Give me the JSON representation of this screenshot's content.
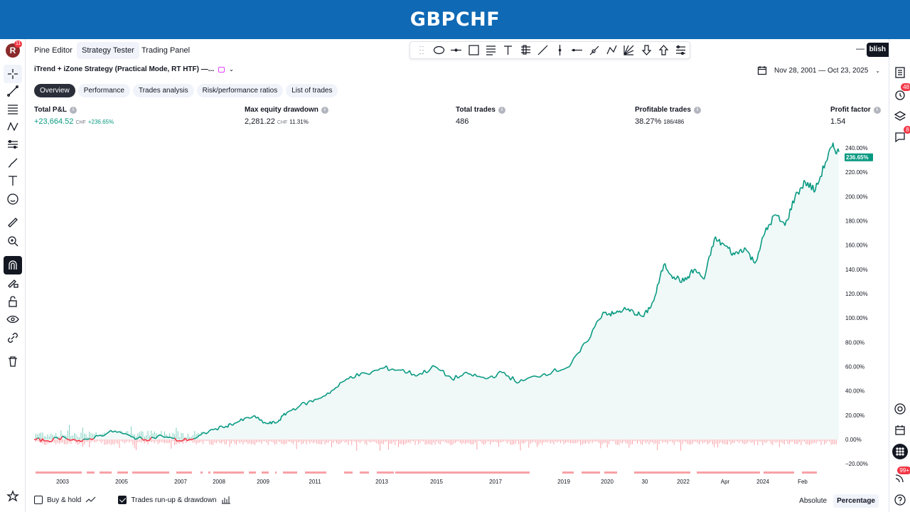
{
  "banner": {
    "title": "GBPCHF"
  },
  "topbar": {
    "avatar_letter": "R",
    "avatar_badge": "11",
    "tabs": [
      "Pine Editor",
      "Strategy Tester",
      "Trading Panel"
    ],
    "active_tab": "Strategy Tester",
    "publish_label": "blish",
    "minimize": "—",
    "restore": "⧉"
  },
  "strategy": {
    "name": "iTrend + iZone Strategy (Practical Mode, RT HTF) —...",
    "date_range": "Nov 28, 2001 — Oct 23, 2025"
  },
  "pills": [
    "Overview",
    "Performance",
    "Trades analysis",
    "Risk/performance ratios",
    "List of trades"
  ],
  "metrics": {
    "total_pl": {
      "label": "Total P&L",
      "value": "+23,664.52",
      "unit": "CHF",
      "sub": "+236.65%"
    },
    "max_dd": {
      "label": "Max equity drawdown",
      "value": "2,281.22",
      "unit": "CHF",
      "sub": "11.31%"
    },
    "total_trades": {
      "label": "Total trades",
      "value": "486"
    },
    "profitable": {
      "label": "Profitable trades",
      "value": "38.27%",
      "sub": "186/486"
    },
    "profit_factor": {
      "label": "Profit factor",
      "value": "1.54"
    }
  },
  "right_badges": {
    "alerts": "48",
    "chat": "8",
    "notifications": "99+"
  },
  "bottom": {
    "buy_hold": "Buy & hold",
    "runup": "Trades run-up & drawdown",
    "absolute": "Absolute",
    "percentage": "Percentage"
  },
  "colors": {
    "equity": "#089981",
    "negative": "#f23645",
    "fill": "#f0f9f8",
    "drawdown_bar": "#f7a1a7"
  },
  "chart_data": {
    "type": "area",
    "title": "",
    "xlabel": "",
    "ylabel": "",
    "ylim": [
      -20,
      240
    ],
    "y_ticks": [
      "240.00%",
      "220.00%",
      "200.00%",
      "180.00%",
      "160.00%",
      "140.00%",
      "120.00%",
      "100.00%",
      "80.00%",
      "60.00%",
      "40.00%",
      "20.00%",
      "0.00%",
      "−20.00%"
    ],
    "last_value_label": "236.65%",
    "x_ticks": [
      "2003",
      "2005",
      "2007",
      "2008",
      "2009",
      "2011",
      "2013",
      "2015",
      "2017",
      "2019",
      "2020",
      "30",
      "2022",
      "Apr",
      "2024",
      "Feb"
    ],
    "grid": false,
    "series": [
      {
        "name": "",
        "x": [
          2001.9,
          2002.3,
          2002.8,
          2003.3,
          2003.8,
          2004.3,
          2004.8,
          2005.2,
          2005.7,
          2006.2,
          2006.7,
          2007.1,
          2007.6,
          2008.0,
          2008.4,
          2008.8,
          2009.1,
          2009.4,
          2009.8,
          2010.3,
          2010.8,
          2011.3,
          2011.8,
          2012.3,
          2012.8,
          2013.3,
          2013.8,
          2014.3,
          2014.8,
          2015.3,
          2015.8,
          2016.3,
          2016.8,
          2017.3,
          2017.8,
          2018.3,
          2018.8,
          2019.1,
          2019.4,
          2019.7,
          2020.0,
          2020.3,
          2020.6,
          2020.9,
          2021.2,
          2021.5,
          2021.8,
          2022.1,
          2022.4,
          2022.7,
          2023.0,
          2023.3,
          2023.6,
          2023.9,
          2024.2,
          2024.5,
          2024.8,
          2025.1,
          2025.4,
          2025.6,
          2025.8
        ],
        "values": [
          0,
          -1,
          2,
          -2,
          3,
          7,
          2,
          0,
          3,
          -1,
          1,
          7,
          11,
          15,
          19,
          13,
          14,
          22,
          28,
          33,
          41,
          52,
          54,
          59,
          57,
          53,
          60,
          50,
          54,
          50,
          55,
          47,
          52,
          56,
          60,
          80,
          105,
          103,
          107,
          105,
          101,
          114,
          144,
          134,
          130,
          140,
          132,
          165,
          160,
          152,
          158,
          145,
          170,
          185,
          176,
          200,
          212,
          205,
          228,
          241,
          236.65
        ]
      }
    ]
  }
}
